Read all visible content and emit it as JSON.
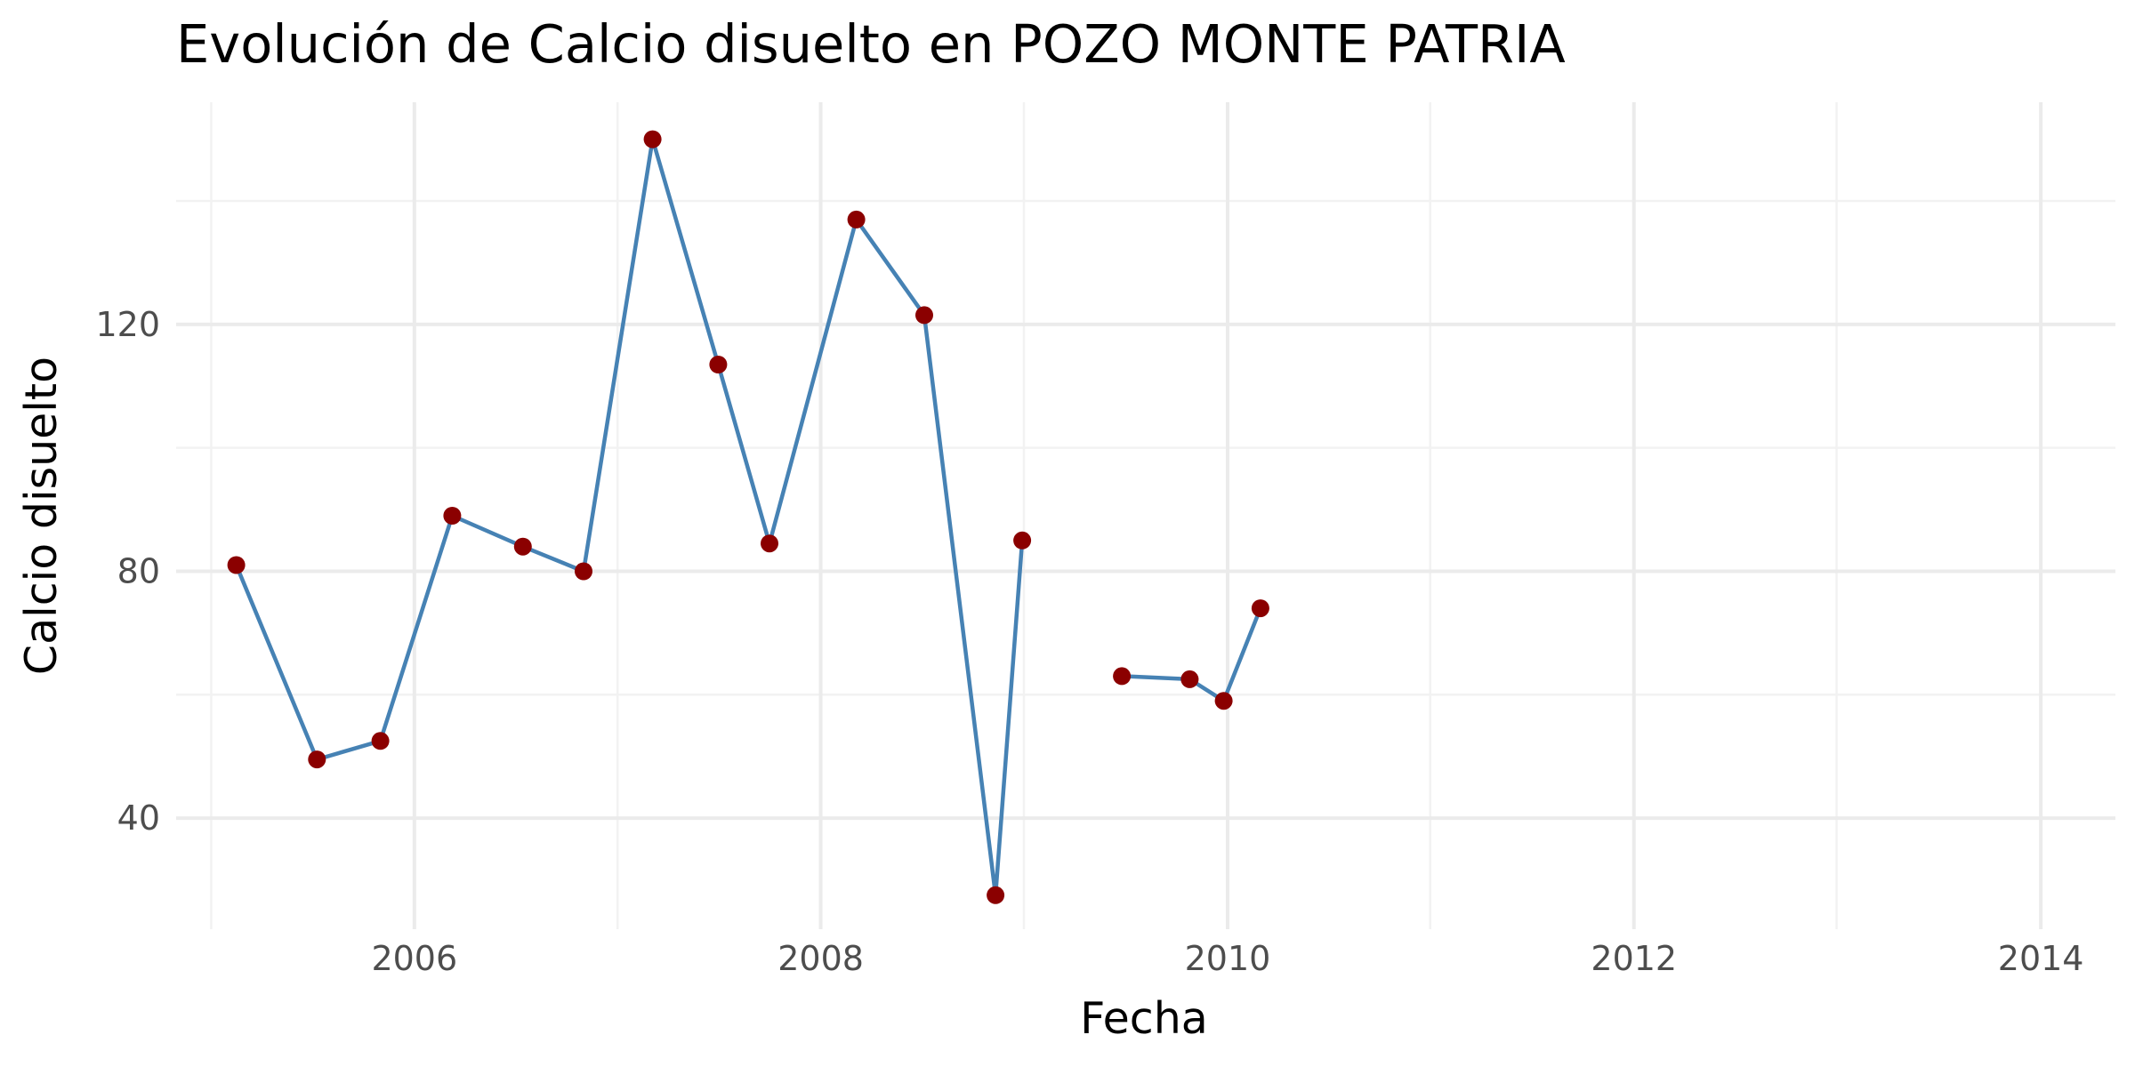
{
  "chart_data": {
    "type": "line",
    "title": "Evolución de Calcio disuelto en POZO MONTE PATRIA",
    "xlabel": "Fecha",
    "ylabel": "Calcio disuelto",
    "xlim": [
      "2004-10-30",
      "2014-05-15"
    ],
    "ylim": [
      22,
      156
    ],
    "x_ticks": [
      "2006-01-01",
      "2008-01-01",
      "2010-01-01",
      "2012-01-01",
      "2014-01-01"
    ],
    "x_tick_labels": [
      "2006",
      "2008",
      "2010",
      "2012",
      "2014"
    ],
    "y_ticks": [
      40,
      80,
      120
    ],
    "y_tick_labels": [
      "40",
      "80",
      "120"
    ],
    "grid": true,
    "legend": "none",
    "line_color": "#4682b4",
    "point_color": "#8b0000",
    "series": [
      {
        "points": [
          {
            "x": "2005-02-15",
            "y": 81
          },
          {
            "x": "2005-07-10",
            "y": 49.5
          },
          {
            "x": "2005-11-01",
            "y": 52.5
          },
          {
            "x": "2006-03-10",
            "y": 89
          },
          {
            "x": "2006-07-15",
            "y": 84
          },
          {
            "x": "2006-11-01",
            "y": 80
          },
          {
            "x": "2007-03-05",
            "y": 150
          },
          {
            "x": "2007-07-01",
            "y": 113.5
          },
          {
            "x": "2007-10-01",
            "y": 84.5
          },
          {
            "x": "2008-03-05",
            "y": 137
          },
          {
            "x": "2008-07-05",
            "y": 121.5
          },
          {
            "x": "2008-11-10",
            "y": 27.5
          },
          {
            "x": "2008-12-28",
            "y": 85
          },
          null,
          {
            "x": "2009-06-25",
            "y": 63
          },
          {
            "x": "2009-10-25",
            "y": 62.5
          },
          {
            "x": "2009-12-25",
            "y": 59
          },
          {
            "x": "2010-03-01",
            "y": 74
          }
        ]
      }
    ]
  }
}
